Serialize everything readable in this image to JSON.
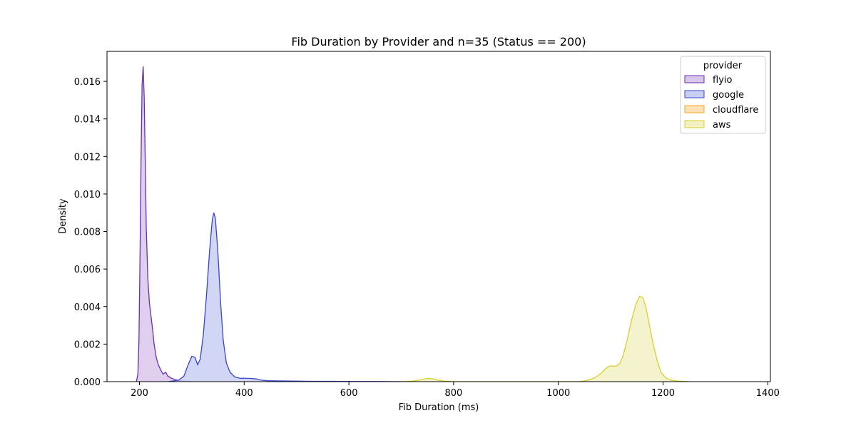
{
  "chart_data": {
    "type": "area",
    "title": "Fib Duration by Provider and n=35 (Status == 200)",
    "xlabel": "Fib Duration (ms)",
    "ylabel": "Density",
    "xlim": [
      138,
      1405
    ],
    "ylim": [
      0,
      0.0176
    ],
    "xticks": [
      200,
      400,
      600,
      800,
      1000,
      1200,
      1400
    ],
    "yticks": [
      0.0,
      0.002,
      0.004,
      0.006,
      0.008,
      0.01,
      0.012,
      0.014,
      0.016
    ],
    "ytick_labels": [
      "0.000",
      "0.002",
      "0.004",
      "0.006",
      "0.008",
      "0.010",
      "0.012",
      "0.014",
      "0.016"
    ],
    "legend": {
      "title": "provider",
      "position": "top-right"
    },
    "series": [
      {
        "name": "flyio",
        "color": "#6a2fb0",
        "fill": "#d9c6ea",
        "points": [
          [
            194,
            0
          ],
          [
            197,
            0.0004
          ],
          [
            199,
            0.0022
          ],
          [
            201,
            0.0065
          ],
          [
            203,
            0.0118
          ],
          [
            205,
            0.0158
          ],
          [
            207,
            0.0168
          ],
          [
            209,
            0.0152
          ],
          [
            211,
            0.0118
          ],
          [
            213,
            0.0082
          ],
          [
            216,
            0.0055
          ],
          [
            219,
            0.0042
          ],
          [
            222,
            0.0035
          ],
          [
            225,
            0.0028
          ],
          [
            228,
            0.002
          ],
          [
            232,
            0.0013
          ],
          [
            236,
            0.0009
          ],
          [
            241,
            0.0006
          ],
          [
            245,
            0.0004
          ],
          [
            250,
            0.0005
          ],
          [
            254,
            0.0003
          ],
          [
            260,
            0.0002
          ],
          [
            268,
            0.0001
          ],
          [
            280,
            4e-05
          ],
          [
            300,
            0
          ]
        ]
      },
      {
        "name": "google",
        "color": "#3446cc",
        "fill": "#c8cff2",
        "points": [
          [
            255,
            0
          ],
          [
            275,
            8e-05
          ],
          [
            285,
            0.0003
          ],
          [
            293,
            0.0009
          ],
          [
            300,
            0.00135
          ],
          [
            306,
            0.0013
          ],
          [
            311,
            0.0009
          ],
          [
            316,
            0.0012
          ],
          [
            322,
            0.0025
          ],
          [
            328,
            0.0046
          ],
          [
            334,
            0.007
          ],
          [
            339,
            0.0086
          ],
          [
            342,
            0.009
          ],
          [
            345,
            0.0087
          ],
          [
            350,
            0.0068
          ],
          [
            355,
            0.0042
          ],
          [
            360,
            0.0022
          ],
          [
            366,
            0.001
          ],
          [
            373,
            0.0005
          ],
          [
            382,
            0.00025
          ],
          [
            392,
            0.00018
          ],
          [
            402,
            0.00018
          ],
          [
            412,
            0.00017
          ],
          [
            422,
            0.00015
          ],
          [
            432,
            8e-05
          ],
          [
            445,
            5e-05
          ],
          [
            460,
            4e-05
          ],
          [
            490,
            3e-05
          ],
          [
            530,
            2e-05
          ],
          [
            570,
            2e-05
          ],
          [
            610,
            1e-05
          ],
          [
            660,
            1e-05
          ],
          [
            700,
            0
          ]
        ]
      },
      {
        "name": "cloudflare",
        "color": "#f5a623",
        "fill": "#fde0b5",
        "points": []
      },
      {
        "name": "aws",
        "color": "#d4d12e",
        "fill": "#f3f1c4",
        "points": [
          [
            700,
            0
          ],
          [
            722,
            3e-05
          ],
          [
            735,
            9e-05
          ],
          [
            745,
            0.00015
          ],
          [
            752,
            0.00017
          ],
          [
            760,
            0.00015
          ],
          [
            770,
            8e-05
          ],
          [
            782,
            3e-05
          ],
          [
            800,
            0
          ],
          [
            1040,
            0
          ],
          [
            1052,
            5e-05
          ],
          [
            1062,
            0.00012
          ],
          [
            1072,
            0.00025
          ],
          [
            1082,
            0.00045
          ],
          [
            1090,
            0.00068
          ],
          [
            1097,
            0.00082
          ],
          [
            1103,
            0.00084
          ],
          [
            1110,
            0.00082
          ],
          [
            1117,
            0.00095
          ],
          [
            1124,
            0.0014
          ],
          [
            1132,
            0.0023
          ],
          [
            1140,
            0.0033
          ],
          [
            1148,
            0.0041
          ],
          [
            1155,
            0.00455
          ],
          [
            1161,
            0.00448
          ],
          [
            1167,
            0.004
          ],
          [
            1174,
            0.003
          ],
          [
            1181,
            0.002
          ],
          [
            1189,
            0.0011
          ],
          [
            1196,
            0.0005
          ],
          [
            1205,
            0.0002
          ],
          [
            1215,
            8e-05
          ],
          [
            1230,
            3e-05
          ],
          [
            1250,
            0
          ]
        ]
      }
    ]
  }
}
